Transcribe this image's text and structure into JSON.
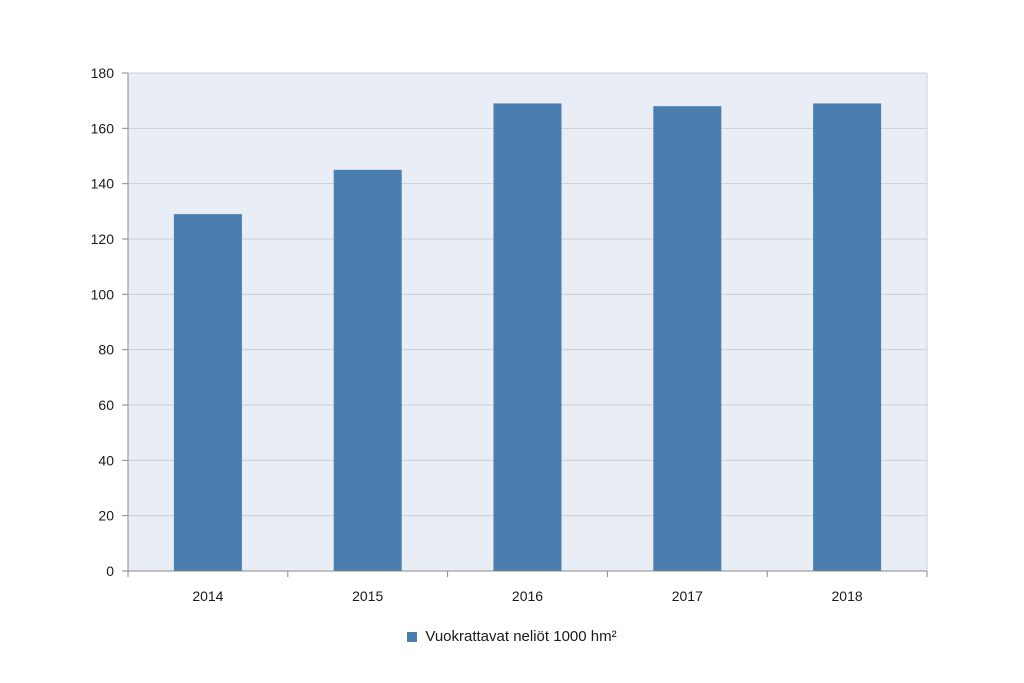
{
  "chart_data": {
    "type": "bar",
    "categories": [
      "2014",
      "2015",
      "2016",
      "2017",
      "2018"
    ],
    "series": [
      {
        "name": "Vuokrattavat neliöt 1000 hm²",
        "values": [
          129,
          145,
          169,
          168,
          169
        ],
        "color": "#4a7eae"
      }
    ],
    "ylim": [
      0,
      180
    ],
    "yticks": [
      "0",
      "20",
      "40",
      "60",
      "80",
      "100",
      "120",
      "140",
      "160",
      "180"
    ],
    "grid": true,
    "plot_background": "#e9eef6",
    "legend_position": "bottom-center"
  }
}
